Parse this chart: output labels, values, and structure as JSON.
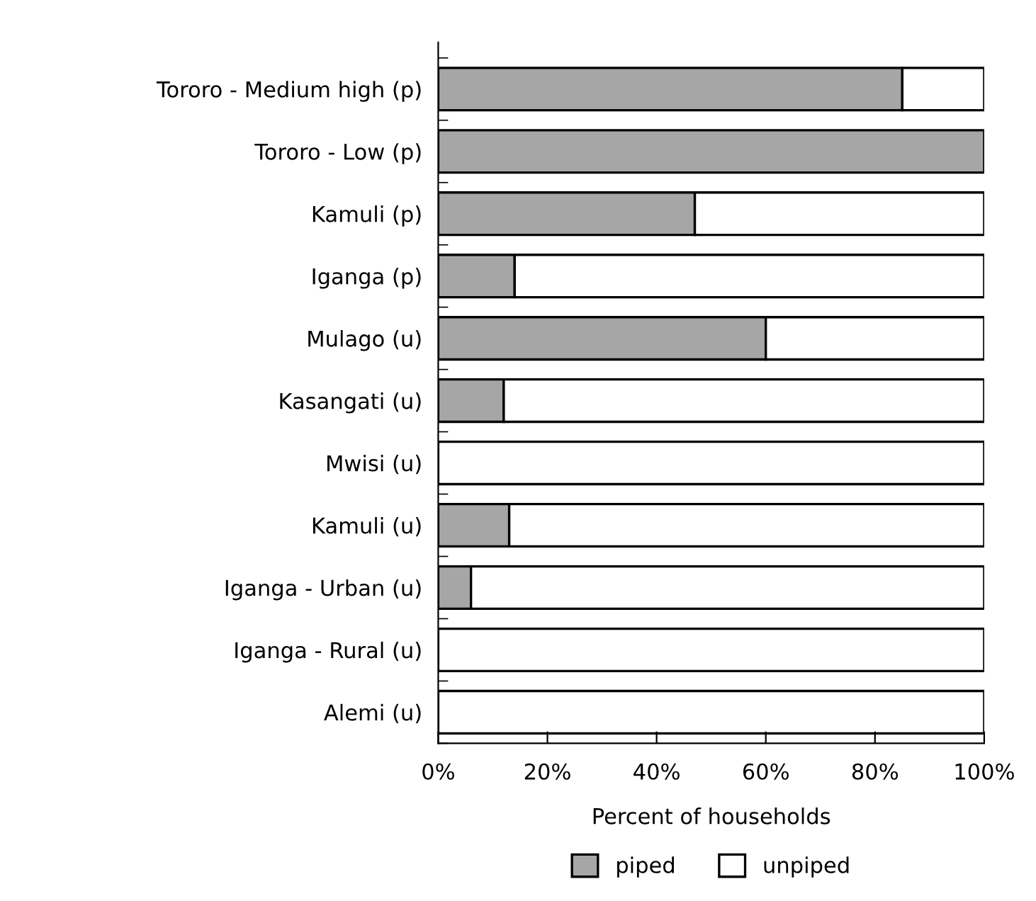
{
  "chart_data": {
    "type": "bar",
    "orientation": "horizontal",
    "stacked": true,
    "xlabel": "Percent of households",
    "categories": [
      "Tororo - Medium high (p)",
      "Tororo - Low (p)",
      "Kamuli (p)",
      "Iganga (p)",
      "Mulago (u)",
      "Kasangati (u)",
      "Mwisi (u)",
      "Kamuli (u)",
      "Iganga - Urban (u)",
      "Iganga - Rural (u)",
      "Alemi (u)"
    ],
    "series": [
      {
        "name": "piped",
        "color": "#a6a6a6",
        "values": [
          85,
          100,
          47,
          14,
          60,
          12,
          0,
          13,
          6,
          0,
          0
        ]
      },
      {
        "name": "unpiped",
        "color": "#ffffff",
        "values": [
          15,
          0,
          53,
          86,
          40,
          88,
          100,
          87,
          94,
          100,
          100
        ]
      }
    ],
    "xlim": [
      0,
      100
    ],
    "xticks": [
      {
        "value": 0,
        "label": "0%"
      },
      {
        "value": 20,
        "label": "20%"
      },
      {
        "value": 40,
        "label": "40%"
      },
      {
        "value": 60,
        "label": "60%"
      },
      {
        "value": 80,
        "label": "80%"
      },
      {
        "value": 100,
        "label": "100%"
      }
    ],
    "grid": false,
    "legend": "bottom"
  }
}
